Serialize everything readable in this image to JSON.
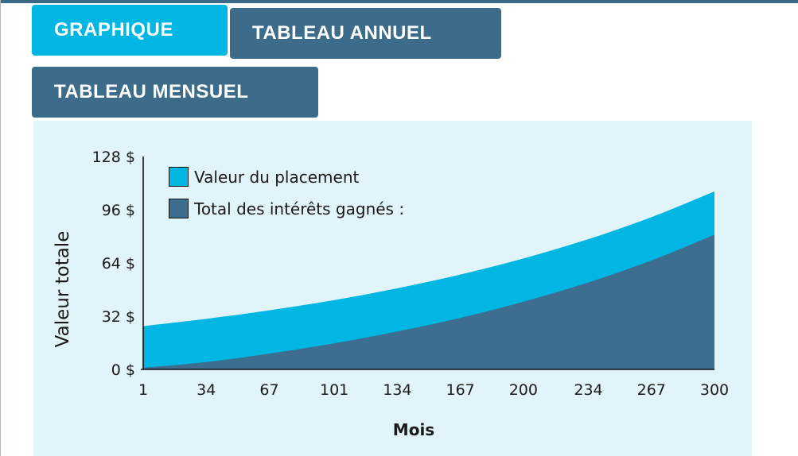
{
  "tabs": [
    {
      "label": "GRAPHIQUE",
      "active": true
    },
    {
      "label": "TABLEAU ANNUEL",
      "active": false
    },
    {
      "label": "TABLEAU MENSUEL",
      "active": false
    }
  ],
  "colors": {
    "accent_cyan": "#00b6e3",
    "slate_area": "#3d6e90",
    "tab_inactive": "#3d6c8b",
    "topbar": "#3a6a87",
    "panel_bg": "#e0f4fa",
    "axis": "#111111",
    "text": "#1a1a1a"
  },
  "chart_data": {
    "type": "area",
    "title": "",
    "xlabel": "Mois",
    "ylabel": "Valeur totale",
    "x": [
      1,
      34,
      67,
      101,
      134,
      167,
      200,
      234,
      267,
      300
    ],
    "x_tick_labels": [
      "1",
      "34",
      "67",
      "101",
      "134",
      "167",
      "200",
      "234",
      "267",
      "300"
    ],
    "y_ticks": [
      0,
      32,
      64,
      96,
      128
    ],
    "y_tick_labels": [
      "0 $",
      "32 $",
      "64 $",
      "96 $",
      "128 $"
    ],
    "ylim": [
      0,
      128
    ],
    "xlim": [
      1,
      300
    ],
    "grid": false,
    "legend_position": "top-left",
    "currency": "$",
    "series": [
      {
        "name": "Valeur du placement",
        "color": "#00b6e3",
        "values": [
          26.0,
          30.4,
          35.5,
          41.7,
          48.8,
          57.0,
          66.7,
          78.3,
          91.5,
          107.0
        ]
      },
      {
        "name": "Total des intérêts gagnés :",
        "color": "#3d6e90",
        "values": [
          1.0,
          4.4,
          9.5,
          15.7,
          22.8,
          31.0,
          40.7,
          52.3,
          65.5,
          81.0
        ]
      }
    ]
  }
}
